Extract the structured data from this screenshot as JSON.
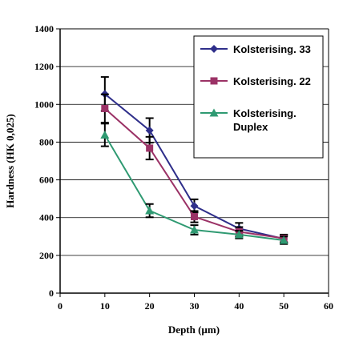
{
  "chart_data": {
    "type": "line",
    "xlabel": "Depth (µm)",
    "ylabel": "Hardness (HK 0,025)",
    "xlim": [
      0,
      60
    ],
    "ylim": [
      0,
      1400
    ],
    "x_ticks": [
      0,
      10,
      20,
      30,
      40,
      50,
      60
    ],
    "y_ticks": [
      0,
      200,
      400,
      600,
      800,
      1000,
      1200,
      1400
    ],
    "grid": "horizontal",
    "legend_position": "top-right",
    "x": [
      10,
      20,
      30,
      40,
      50
    ],
    "series": [
      {
        "name": "Kolsterising. 33",
        "values": [
          1055,
          862,
          462,
          342,
          288
        ],
        "errors": [
          90,
          65,
          35,
          30,
          20
        ],
        "color": "#2e2e8a",
        "marker": "diamond"
      },
      {
        "name": "Kolsterising. 22",
        "values": [
          978,
          768,
          405,
          325,
          290
        ],
        "errors": [
          75,
          60,
          30,
          25,
          20
        ],
        "color": "#9b3266",
        "marker": "square"
      },
      {
        "name_lines": [
          "Kolsterising.",
          "Duplex"
        ],
        "values": [
          838,
          437,
          335,
          310,
          280
        ],
        "errors": [
          60,
          35,
          25,
          20,
          20
        ],
        "color": "#2f9a72",
        "marker": "triangle"
      }
    ]
  }
}
